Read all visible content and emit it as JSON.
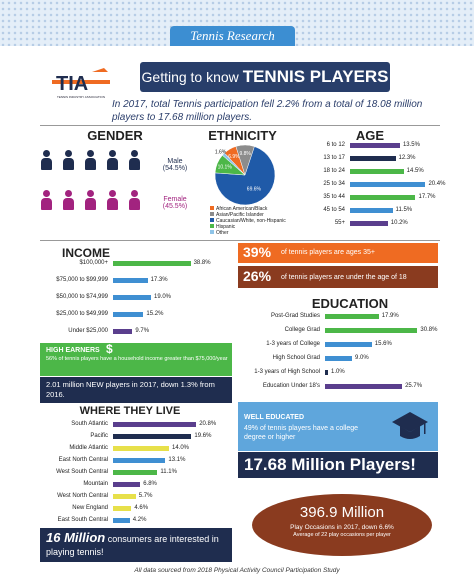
{
  "banner": {
    "title": "Tennis Research"
  },
  "logo": {
    "mark": "TIA",
    "subtitle": "TENNIS INDUSTRY ASSOCIATION"
  },
  "header": {
    "prefix": "Getting to know ",
    "strong": "TENNIS PLAYERS"
  },
  "intro": "In 2017, total Tennis participation fell 2.2% from a total of 18.08 million players to 17.68 million players.",
  "colors": {
    "navy": "#1f2d4f",
    "blue": "#3f8fd2",
    "orange": "#ef6b22",
    "green": "#4cb748",
    "purple": "#5a3e8d",
    "magenta": "#a2237f",
    "teal": "#1d5a7b",
    "brown": "#8a3b1f"
  },
  "gender": {
    "title": "GENDER",
    "male_label": "Male",
    "male_value": "(54.5%)",
    "female_label": "Female",
    "female_value": "(45.5%)"
  },
  "ethnicity": {
    "title": "ETHNICITY"
  },
  "age": {
    "title": "AGE"
  },
  "income": {
    "title": "INCOME"
  },
  "education": {
    "title": "EDUCATION"
  },
  "where": {
    "title": "WHERE THEY LIVE"
  },
  "stats": {
    "s1_big": "39%",
    "s1_text": "of tennis players are ages 35+",
    "s2_big": "26%",
    "s2_text": "of tennis players are under the age of 18"
  },
  "high_earners": {
    "title": "HIGH EARNERS",
    "symbol": "$",
    "text": "56% of tennis players have a household income greater than $75,000/year"
  },
  "new_players": "2.01 million NEW players in 2017, down 1.3% from 2016.",
  "well_educated": {
    "title": "WELL EDUCATED",
    "text": "49% of tennis players have a college degree or higher"
  },
  "players_total": "17.68 Million Players!",
  "sixteen": {
    "big": "16 Million",
    "text": " consumers are interested in playing tennis!"
  },
  "occasions": {
    "big": "396.9 Million",
    "line1": "Play Occasions in 2017, down 6.6%",
    "line2": "Average of 22 play occasions per player"
  },
  "footer": "All data sourced from 2018 Physical Activity Council Participation Study",
  "chart_data": [
    {
      "type": "pie",
      "categories": [
        "African American/Black",
        "Asian/Pacific Islander",
        "Caucasian/White, non-Hispanic",
        "Hispanic",
        "Other"
      ],
      "values": [
        6.9,
        9.8,
        69.6,
        10.1,
        1.6
      ],
      "labels": [
        "6.9%",
        "9.8%",
        "69.6%",
        "10.1%",
        "1.6%"
      ],
      "colors": [
        "#ef6b22",
        "#8c8c8c",
        "#1f5aa8",
        "#4cb748",
        "#8ec4e8"
      ]
    },
    {
      "type": "bar",
      "categories": [
        "6 to 12",
        "13 to 17",
        "18 to 24",
        "25 to 34",
        "35 to 44",
        "45 to 54",
        "55+"
      ],
      "values": [
        13.5,
        12.3,
        14.5,
        20.4,
        17.7,
        11.5,
        10.2
      ],
      "labels": [
        "13.5%",
        "12.3%",
        "14.5%",
        "20.4%",
        "17.7%",
        "11.5%",
        "10.2%"
      ],
      "colors": [
        "#5a3e8d",
        "#1f2d4f",
        "#4cb748",
        "#3f8fd2",
        "#4cb748",
        "#3f8fd2",
        "#5a3e8d"
      ]
    },
    {
      "type": "bar",
      "categories": [
        "$100,000+",
        "$75,000 to $99,999",
        "$50,000 to $74,999",
        "$25,000 to $49,999",
        "Under $25,000"
      ],
      "values": [
        38.8,
        17.3,
        19.0,
        15.2,
        9.7
      ],
      "labels": [
        "38.8%",
        "17.3%",
        "19.0%",
        "15.2%",
        "9.7%"
      ],
      "colors": [
        "#4cb748",
        "#3f8fd2",
        "#3f8fd2",
        "#3f8fd2",
        "#5a3e8d"
      ]
    },
    {
      "type": "bar",
      "categories": [
        "Post-Grad Studies",
        "College Grad",
        "1-3 years of College",
        "High School Grad",
        "1-3 years of High School",
        "Education Under 18's"
      ],
      "values": [
        17.9,
        30.8,
        15.6,
        9.0,
        1.0,
        25.7
      ],
      "labels": [
        "17.9%",
        "30.8%",
        "15.6%",
        "9.0%",
        "1.0%",
        "25.7%"
      ],
      "colors": [
        "#4cb748",
        "#4cb748",
        "#3f8fd2",
        "#3f8fd2",
        "#1f2d4f",
        "#5a3e8d"
      ]
    },
    {
      "type": "bar",
      "categories": [
        "South Atlantic",
        "Pacific",
        "Middle Atlantic",
        "East North Central",
        "West South Central",
        "Mountain",
        "West North Central",
        "New England",
        "East South Central"
      ],
      "values": [
        20.8,
        19.6,
        14.0,
        13.1,
        11.1,
        6.8,
        5.7,
        4.6,
        4.2
      ],
      "labels": [
        "20.8%",
        "19.6%",
        "14.0%",
        "13.1%",
        "11.1%",
        "6.8%",
        "5.7%",
        "4.6%",
        "4.2%"
      ],
      "colors": [
        "#5a3e8d",
        "#1f2d4f",
        "#e7e04a",
        "#3f8fd2",
        "#4cb748",
        "#5a3e8d",
        "#e7e04a",
        "#e7e04a",
        "#3f8fd2"
      ]
    }
  ]
}
